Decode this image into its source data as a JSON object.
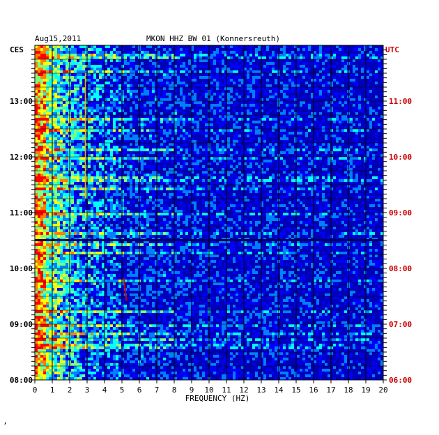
{
  "chart_data": {
    "type": "heatmap",
    "title": "MKON HHZ BW 01 (Konnersreuth)",
    "date_label": "Aug15,2011",
    "left_timezone": "CES",
    "right_timezone": "UTC",
    "xlabel": "FREQUENCY (HZ)",
    "x_ticks": [
      "0",
      "1",
      "2",
      "3",
      "4",
      "5",
      "6",
      "7",
      "8",
      "9",
      "10",
      "11",
      "12",
      "13",
      "14",
      "15",
      "16",
      "17",
      "18",
      "19",
      "20"
    ],
    "xlim": [
      0,
      20
    ],
    "left_time_ticks": [
      "08:00",
      "09:00",
      "10:00",
      "11:00",
      "12:00",
      "13:00"
    ],
    "right_time_ticks": [
      "06:00",
      "07:00",
      "08:00",
      "09:00",
      "10:00",
      "11:00"
    ],
    "time_range_cest": [
      "08:00",
      "13:55"
    ],
    "time_range_utc": [
      "06:00",
      "11:55"
    ],
    "grid": true,
    "colormap": [
      "#00007f",
      "#0000ff",
      "#007fff",
      "#00ffff",
      "#7fff7f",
      "#ffff00",
      "#ff7f00",
      "#ff0000"
    ],
    "features": [
      {
        "description": "strong low-frequency energy",
        "freq_hz": [
          0,
          3
        ]
      },
      {
        "description": "vertical line",
        "freq_hz": 2.9
      },
      {
        "description": "red dispersive trace",
        "freq_hz": 5.1,
        "time_cest": [
          "09:25",
          "09:50"
        ]
      },
      {
        "description": "dark horizontal band",
        "time_cest": "10:30"
      }
    ]
  },
  "colors": {
    "background": "#ffffff",
    "plot_base": "#0000b8",
    "grid": "#000000",
    "left_axis_text": "#000000",
    "right_axis_text": "#cc0000"
  },
  "footer_mark": "’"
}
